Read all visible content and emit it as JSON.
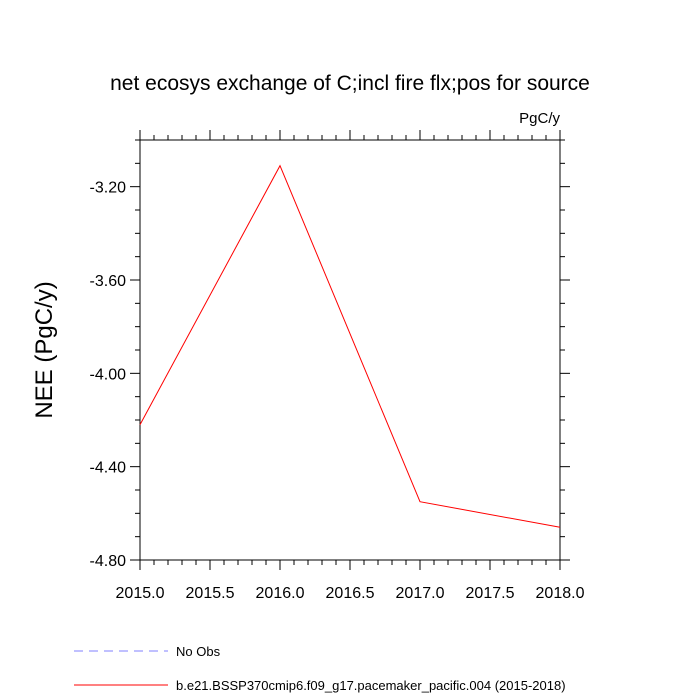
{
  "chart_data": {
    "type": "line",
    "title": "net ecosys exchange of C;incl fire flx;pos for source",
    "units": "PgC/y",
    "ylabel": "NEE  (PgC/y)",
    "xlabel": "",
    "xlim": [
      2015.0,
      2018.0
    ],
    "ylim": [
      -4.8,
      -3.0
    ],
    "xticks": [
      2015.0,
      2015.5,
      2016.0,
      2016.5,
      2017.0,
      2017.5,
      2018.0
    ],
    "xtick_labels": [
      "2015.0",
      "2015.5",
      "2016.0",
      "2016.5",
      "2017.0",
      "2017.5",
      "2018.0"
    ],
    "yticks": [
      -4.8,
      -4.4,
      -4.0,
      -3.6,
      -3.2
    ],
    "ytick_labels": [
      "-4.80",
      "-4.40",
      "-4.00",
      "-3.60",
      "-3.20"
    ],
    "y_minor_step": 0.1,
    "x_minor_step": 0.1,
    "grid": false,
    "legend_position": "bottom",
    "series": [
      {
        "name": "No Obs",
        "color": "#8080ff",
        "dash": "dashed",
        "x": [],
        "y": []
      },
      {
        "name": "b.e21.BSSP370cmip6.f09_g17.pacemaker_pacific.004 (2015-2018)",
        "color": "#ff0000",
        "dash": "solid",
        "x": [
          2015.0,
          2016.0,
          2017.0,
          2018.0
        ],
        "y": [
          -4.22,
          -3.11,
          -4.55,
          -4.66
        ]
      }
    ]
  }
}
